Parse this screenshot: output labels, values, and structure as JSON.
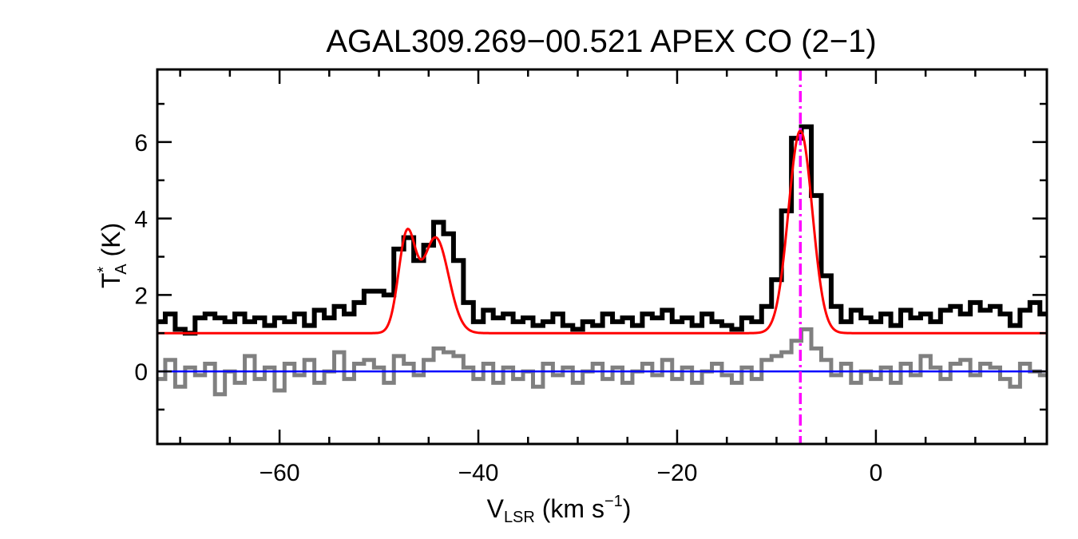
{
  "chart_data": {
    "type": "line",
    "title": "AGAL309.269−00.521   APEX CO (2−1)",
    "xlabel": {
      "main": "V",
      "sub": "LSR",
      "rest": " (km s",
      "sup": "−1",
      "close": ")"
    },
    "ylabel": {
      "main": "T",
      "sup": "*",
      "sub": "A",
      "rest": " (K)"
    },
    "xlim": [
      -72.3,
      17.2
    ],
    "ylim": [
      -1.9,
      7.9
    ],
    "xticks": [
      -60,
      -40,
      -20,
      0
    ],
    "xtick_labels": [
      "−60",
      "−40",
      "−20",
      "0"
    ],
    "yticks": [
      0,
      2,
      4,
      6
    ],
    "ytick_labels": [
      "0",
      "2",
      "4",
      "6"
    ],
    "x": [
      -72,
      -71,
      -70,
      -69,
      -68,
      -67,
      -66,
      -65,
      -64,
      -63,
      -62,
      -61,
      -60,
      -59,
      -58,
      -57,
      -56,
      -55,
      -54,
      -53,
      -52,
      -51,
      -50,
      -49,
      -48,
      -47,
      -46,
      -45,
      -44,
      -43,
      -42,
      -41,
      -40,
      -39,
      -38,
      -37,
      -36,
      -35,
      -34,
      -33,
      -32,
      -31,
      -30,
      -29,
      -28,
      -27,
      -26,
      -25,
      -24,
      -23,
      -22,
      -21,
      -20,
      -19,
      -18,
      -17,
      -16,
      -15,
      -14,
      -13,
      -12,
      -11,
      -10,
      -9,
      -8,
      -7,
      -6,
      -5,
      -4,
      -3,
      -2,
      -1,
      0,
      1,
      2,
      3,
      4,
      5,
      6,
      7,
      8,
      9,
      10,
      11,
      12,
      13,
      14,
      15,
      16,
      17
    ],
    "series": [
      {
        "role": "spectrum",
        "color": "#000000",
        "values": [
          1.3,
          1.5,
          1.1,
          1.0,
          1.4,
          1.5,
          1.4,
          1.3,
          1.5,
          1.3,
          1.4,
          1.2,
          1.4,
          1.3,
          1.5,
          1.2,
          1.6,
          1.4,
          1.7,
          1.5,
          1.8,
          2.1,
          2.1,
          2.0,
          3.2,
          3.5,
          2.9,
          3.3,
          3.9,
          3.6,
          2.9,
          1.8,
          1.3,
          1.6,
          1.4,
          1.5,
          1.3,
          1.4,
          1.2,
          1.3,
          1.5,
          1.2,
          1.1,
          1.3,
          1.2,
          1.5,
          1.3,
          1.4,
          1.2,
          1.5,
          1.4,
          1.6,
          1.3,
          1.4,
          1.2,
          1.5,
          1.3,
          1.2,
          1.1,
          1.4,
          1.3,
          1.7,
          2.4,
          4.2,
          6.1,
          6.4,
          4.6,
          2.5,
          1.7,
          1.3,
          1.6,
          1.4,
          1.3,
          1.5,
          1.2,
          1.6,
          1.4,
          1.5,
          1.3,
          1.6,
          1.7,
          1.5,
          1.8,
          1.6,
          1.7,
          1.5,
          1.2,
          1.6,
          1.8,
          1.5
        ]
      },
      {
        "role": "residual",
        "color": "#808080",
        "values": [
          -0.2,
          0.3,
          -0.4,
          0.1,
          -0.1,
          0.2,
          -0.6,
          0.0,
          -0.3,
          0.4,
          -0.2,
          0.1,
          -0.5,
          0.2,
          -0.1,
          0.3,
          -0.3,
          0.0,
          0.5,
          -0.2,
          0.2,
          0.3,
          0.1,
          -0.3,
          0.4,
          0.2,
          -0.1,
          0.3,
          0.6,
          0.5,
          0.4,
          0.1,
          -0.2,
          0.2,
          -0.3,
          0.1,
          -0.2,
          0.0,
          -0.4,
          0.2,
          -0.1,
          0.1,
          -0.3,
          0.0,
          0.2,
          -0.2,
          0.1,
          -0.3,
          0.0,
          0.2,
          -0.1,
          0.3,
          -0.2,
          0.1,
          -0.3,
          0.0,
          0.2,
          -0.1,
          -0.3,
          0.1,
          -0.2,
          0.3,
          0.4,
          0.5,
          0.8,
          1.1,
          0.6,
          0.3,
          -0.1,
          0.2,
          -0.3,
          0.0,
          -0.2,
          0.1,
          -0.3,
          0.2,
          -0.1,
          0.4,
          0.1,
          -0.2,
          0.2,
          0.3,
          -0.1,
          0.2,
          0.1,
          -0.2,
          -0.4,
          0.2,
          0.0,
          -0.1
        ]
      }
    ],
    "fit": {
      "color": "#ff0000",
      "baseline": 1.0,
      "gaussians": [
        {
          "amplitude": 2.5,
          "center": -47.2,
          "sigma": 0.85
        },
        {
          "amplitude": 2.5,
          "center": -44.3,
          "sigma": 1.3
        },
        {
          "amplitude": 5.3,
          "center": -7.6,
          "sigma": 1.2
        }
      ]
    },
    "zero_line": {
      "y": 0,
      "color": "#0000ff"
    },
    "marker_line": {
      "x": -7.6,
      "color": "#ff00ff",
      "style": "dash-dot"
    },
    "grid": false,
    "legend": "none"
  }
}
